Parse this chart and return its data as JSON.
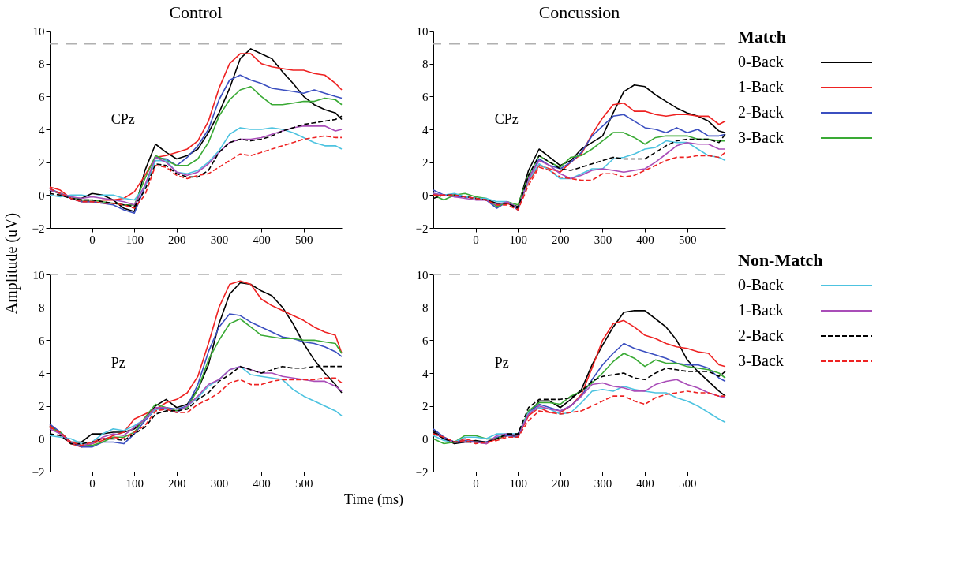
{
  "chart_data": [
    {
      "type": "line",
      "title": "Control",
      "ylabel": "Amplitude (uV)",
      "annotations": [
        "CPz"
      ],
      "xlim": [
        -100,
        590
      ],
      "ylim": [
        -2,
        10
      ],
      "xticks": [
        0,
        100,
        200,
        300,
        400,
        500
      ],
      "yticks": [
        -2,
        0,
        2,
        4,
        6,
        8,
        10
      ],
      "grid": false,
      "ref_lines": [
        {
          "axis": "y",
          "value": 9.2,
          "color": "#b0b0b0",
          "line_style": "dashed"
        }
      ],
      "x": [
        -100,
        -75,
        -50,
        -25,
        0,
        25,
        50,
        75,
        100,
        125,
        150,
        175,
        200,
        225,
        250,
        275,
        300,
        325,
        350,
        375,
        400,
        425,
        450,
        475,
        500,
        525,
        550,
        575,
        590
      ],
      "series": [
        {
          "color": "#000000",
          "line_style": "solid",
          "values": [
            0.3,
            0.1,
            -0.2,
            -0.2,
            0.1,
            0,
            -0.3,
            -0.8,
            -1.0,
            1.5,
            3.1,
            2.6,
            2.2,
            2.4,
            2.8,
            3.8,
            5.0,
            6.5,
            8.3,
            8.9,
            8.6,
            8.3,
            7.5,
            6.8,
            6.0,
            5.5,
            5.2,
            5.0,
            4.6
          ]
        },
        {
          "color": "#ee2222",
          "line_style": "solid",
          "values": [
            0.5,
            0.3,
            -0.2,
            -0.4,
            -0.4,
            -0.3,
            -0.3,
            -0.2,
            0.2,
            1.2,
            2.3,
            2.4,
            2.6,
            2.8,
            3.3,
            4.5,
            6.5,
            8.0,
            8.6,
            8.6,
            8.0,
            7.8,
            7.7,
            7.6,
            7.6,
            7.4,
            7.3,
            6.8,
            6.4
          ]
        },
        {
          "color": "#3b4fc0",
          "line_style": "solid",
          "values": [
            0.4,
            0.1,
            -0.2,
            -0.4,
            -0.4,
            -0.5,
            -0.6,
            -0.9,
            -1.1,
            0.5,
            2.3,
            2.2,
            1.8,
            2.3,
            3.0,
            4.0,
            5.8,
            7.0,
            7.3,
            7.0,
            6.8,
            6.5,
            6.4,
            6.3,
            6.2,
            6.4,
            6.2,
            6.0,
            5.9
          ]
        },
        {
          "color": "#3aaa35",
          "line_style": "solid",
          "values": [
            0.3,
            0.1,
            -0.1,
            -0.3,
            -0.3,
            -0.4,
            -0.5,
            -0.6,
            -0.6,
            1.0,
            2.4,
            2.1,
            1.8,
            1.8,
            2.2,
            3.2,
            4.8,
            5.8,
            6.4,
            6.6,
            6.0,
            5.5,
            5.5,
            5.6,
            5.7,
            5.7,
            5.9,
            5.8,
            5.5
          ]
        },
        {
          "color": "#4dc3e0",
          "line_style": "solid",
          "values": [
            0,
            -0.1,
            0,
            0,
            -0.1,
            0,
            0,
            -0.2,
            -0.3,
            0.5,
            2.1,
            2.1,
            1.4,
            1.3,
            1.5,
            2.0,
            2.7,
            3.7,
            4.1,
            4.0,
            4.0,
            4.1,
            4.0,
            3.8,
            3.5,
            3.2,
            3.0,
            3.0,
            2.8
          ]
        },
        {
          "color": "#a94db8",
          "line_style": "solid",
          "values": [
            0.3,
            0.1,
            -0.1,
            -0.2,
            -0.1,
            -0.2,
            -0.3,
            -0.4,
            -0.6,
            0.6,
            2.3,
            2.0,
            1.4,
            1.2,
            1.4,
            1.9,
            2.6,
            3.2,
            3.4,
            3.4,
            3.5,
            3.7,
            3.9,
            4.1,
            4.2,
            4.2,
            4.2,
            3.9,
            4.0
          ]
        },
        {
          "color": "#000000",
          "line_style": "dashed",
          "values": [
            0.1,
            0,
            -0.2,
            -0.3,
            -0.3,
            -0.4,
            -0.5,
            -0.6,
            -0.7,
            0.3,
            1.9,
            1.8,
            1.3,
            1.1,
            1.1,
            1.5,
            2.6,
            3.2,
            3.4,
            3.3,
            3.4,
            3.6,
            3.9,
            4.1,
            4.3,
            4.4,
            4.5,
            4.6,
            4.8
          ]
        },
        {
          "color": "#ee2222",
          "line_style": "dashed",
          "values": [
            0.4,
            0.1,
            -0.2,
            -0.4,
            -0.4,
            -0.5,
            -0.5,
            -0.6,
            -0.8,
            0,
            1.8,
            1.7,
            1.2,
            1.0,
            1.2,
            1.3,
            1.7,
            2.1,
            2.5,
            2.4,
            2.6,
            2.8,
            3.0,
            3.2,
            3.4,
            3.5,
            3.6,
            3.5,
            3.5
          ]
        }
      ]
    },
    {
      "type": "line",
      "title": "Concussion",
      "annotations": [
        "CPz"
      ],
      "xlim": [
        -100,
        590
      ],
      "ylim": [
        -2,
        10
      ],
      "xticks": [
        0,
        100,
        200,
        300,
        400,
        500
      ],
      "yticks": [
        -2,
        0,
        2,
        4,
        6,
        8,
        10
      ],
      "grid": false,
      "legend": "right",
      "legend_title": "Match",
      "ref_lines": [
        {
          "axis": "y",
          "value": 9.2,
          "color": "#b0b0b0",
          "line_style": "dashed"
        }
      ],
      "x": [
        -100,
        -75,
        -50,
        -25,
        0,
        25,
        50,
        75,
        100,
        125,
        150,
        175,
        200,
        225,
        250,
        275,
        300,
        325,
        350,
        375,
        400,
        425,
        450,
        475,
        500,
        525,
        550,
        575,
        590
      ],
      "series": [
        {
          "name": "0-Back",
          "color": "#000000",
          "line_style": "solid",
          "values": [
            0,
            0,
            0,
            -0.1,
            -0.2,
            -0.3,
            -0.5,
            -0.5,
            -0.7,
            1.5,
            2.8,
            2.3,
            1.8,
            2.1,
            2.8,
            3.2,
            3.6,
            5.0,
            6.3,
            6.7,
            6.6,
            6.1,
            5.7,
            5.3,
            5.0,
            4.8,
            4.5,
            3.9,
            3.8
          ]
        },
        {
          "name": "1-Back",
          "color": "#ee2222",
          "line_style": "solid",
          "values": [
            0,
            0,
            0,
            -0.1,
            -0.2,
            -0.3,
            -0.6,
            -0.5,
            -0.8,
            0.8,
            1.8,
            1.6,
            1.4,
            2.0,
            2.5,
            3.7,
            4.7,
            5.5,
            5.6,
            5.1,
            5.1,
            4.9,
            4.8,
            4.9,
            4.9,
            4.8,
            4.8,
            4.3,
            4.5
          ]
        },
        {
          "name": "2-Back",
          "color": "#3b4fc0",
          "line_style": "solid",
          "values": [
            0.3,
            0,
            -0.1,
            -0.1,
            -0.2,
            -0.3,
            -0.8,
            -0.4,
            -0.9,
            1.0,
            2.2,
            1.8,
            1.6,
            2.0,
            2.6,
            3.6,
            4.2,
            4.8,
            4.9,
            4.5,
            4.1,
            4.0,
            3.8,
            4.1,
            3.8,
            4.0,
            3.6,
            3.6,
            3.7
          ]
        },
        {
          "name": "3-Back",
          "color": "#3aaa35",
          "line_style": "solid",
          "values": [
            0,
            -0.3,
            0,
            0.1,
            -0.1,
            -0.2,
            -0.7,
            -0.4,
            -0.6,
            1.2,
            2.4,
            2.0,
            1.7,
            2.3,
            2.4,
            2.8,
            3.3,
            3.8,
            3.8,
            3.5,
            3.1,
            3.5,
            3.6,
            3.6,
            3.6,
            3.4,
            3.4,
            3.3,
            3.3
          ]
        },
        {
          "color": "#4dc3e0",
          "line_style": "solid",
          "values": [
            0.1,
            0,
            0.1,
            -0.1,
            -0.2,
            -0.2,
            -0.4,
            -0.4,
            -0.8,
            0.9,
            1.9,
            1.5,
            1.0,
            1.0,
            1.3,
            1.6,
            1.6,
            2.2,
            2.3,
            2.5,
            2.8,
            2.9,
            3.3,
            3.2,
            3.2,
            2.8,
            2.4,
            2.3,
            2.1
          ]
        },
        {
          "color": "#a94db8",
          "line_style": "solid",
          "values": [
            0.1,
            0,
            -0.1,
            -0.2,
            -0.3,
            -0.3,
            -0.6,
            -0.4,
            -0.8,
            1.0,
            2.1,
            1.8,
            1.3,
            1.0,
            1.2,
            1.5,
            1.6,
            1.5,
            1.4,
            1.5,
            1.6,
            2.0,
            2.5,
            3.0,
            3.2,
            3.1,
            3.1,
            2.8,
            2.8
          ]
        },
        {
          "color": "#000000",
          "line_style": "dashed",
          "values": [
            -0.2,
            0,
            0,
            -0.1,
            -0.2,
            -0.3,
            -0.5,
            -0.5,
            -0.8,
            1.2,
            2.4,
            2.0,
            1.6,
            1.5,
            1.7,
            1.9,
            2.1,
            2.3,
            2.2,
            2.2,
            2.2,
            2.6,
            3.0,
            3.3,
            3.4,
            3.4,
            3.4,
            3.2,
            3.7
          ]
        },
        {
          "color": "#ee2222",
          "line_style": "dashed",
          "values": [
            0,
            0,
            0,
            -0.1,
            -0.2,
            -0.3,
            -0.6,
            -0.6,
            -0.9,
            0.6,
            1.7,
            1.5,
            1.1,
            1.0,
            0.9,
            0.9,
            1.3,
            1.3,
            1.1,
            1.2,
            1.5,
            1.8,
            2.1,
            2.3,
            2.3,
            2.4,
            2.4,
            2.3,
            2.6
          ]
        }
      ]
    },
    {
      "type": "line",
      "xlabel": "Time (ms)",
      "annotations": [
        "Pz"
      ],
      "xlim": [
        -100,
        590
      ],
      "ylim": [
        -2,
        10
      ],
      "xticks": [
        0,
        100,
        200,
        300,
        400,
        500
      ],
      "yticks": [
        -2,
        0,
        2,
        4,
        6,
        8,
        10
      ],
      "grid": false,
      "ref_lines": [
        {
          "axis": "y",
          "value": 10,
          "color": "#b0b0b0",
          "line_style": "dashed"
        }
      ],
      "x": [
        -100,
        -75,
        -50,
        -25,
        0,
        25,
        50,
        75,
        100,
        125,
        150,
        175,
        200,
        225,
        250,
        275,
        300,
        325,
        350,
        375,
        400,
        425,
        450,
        475,
        500,
        525,
        550,
        575,
        590
      ],
      "series": [
        {
          "color": "#000000",
          "line_style": "solid",
          "values": [
            0.8,
            0.4,
            -0.2,
            -0.2,
            0.3,
            0.3,
            0.4,
            0.4,
            0.6,
            1.2,
            2.0,
            2.4,
            1.9,
            2.1,
            3.0,
            4.5,
            7.0,
            8.8,
            9.5,
            9.4,
            9.0,
            8.7,
            8.0,
            7.0,
            5.8,
            4.8,
            4.0,
            3.3,
            2.8
          ]
        },
        {
          "color": "#ee2222",
          "line_style": "solid",
          "values": [
            0.8,
            0.3,
            -0.3,
            -0.5,
            -0.3,
            -0.1,
            0.2,
            0.4,
            1.2,
            1.5,
            1.8,
            2.2,
            2.4,
            2.8,
            3.8,
            5.8,
            8.0,
            9.4,
            9.6,
            9.4,
            8.5,
            8.1,
            7.8,
            7.5,
            7.2,
            6.8,
            6.5,
            6.3,
            5.2
          ]
        },
        {
          "color": "#3b4fc0",
          "line_style": "solid",
          "values": [
            0.9,
            0.4,
            -0.2,
            -0.5,
            -0.5,
            -0.2,
            -0.2,
            -0.3,
            0.3,
            1.1,
            1.8,
            1.9,
            1.8,
            2.0,
            3.3,
            5.3,
            6.8,
            7.6,
            7.5,
            7.1,
            6.8,
            6.5,
            6.2,
            6.1,
            5.9,
            5.8,
            5.6,
            5.3,
            5.0
          ]
        },
        {
          "color": "#3aaa35",
          "line_style": "solid",
          "values": [
            0.7,
            0.4,
            -0.2,
            -0.4,
            -0.4,
            -0.2,
            0.1,
            0.1,
            0.4,
            1.3,
            2.1,
            1.9,
            1.7,
            1.9,
            3.0,
            4.8,
            6.0,
            7.0,
            7.3,
            6.8,
            6.3,
            6.2,
            6.1,
            6.1,
            6.0,
            6.0,
            5.9,
            5.8,
            5.2
          ]
        },
        {
          "color": "#4dc3e0",
          "line_style": "solid",
          "values": [
            0.2,
            0.1,
            0,
            -0.3,
            -0.2,
            0.3,
            0.6,
            0.5,
            0.8,
            1.2,
            1.8,
            1.8,
            1.6,
            2.0,
            2.5,
            3.2,
            3.6,
            4.2,
            4.4,
            3.9,
            3.8,
            3.7,
            3.6,
            3.0,
            2.6,
            2.3,
            2.0,
            1.7,
            1.4
          ]
        },
        {
          "color": "#a94db8",
          "line_style": "solid",
          "values": [
            0.6,
            0.3,
            -0.2,
            -0.4,
            -0.3,
            0.1,
            0.3,
            0.2,
            0.7,
            1.2,
            1.9,
            1.9,
            1.6,
            2.0,
            2.6,
            3.3,
            3.6,
            4.2,
            4.4,
            4.2,
            4.0,
            4.0,
            3.8,
            3.7,
            3.6,
            3.5,
            3.5,
            3.2,
            2.9
          ]
        },
        {
          "color": "#000000",
          "line_style": "dashed",
          "values": [
            0.3,
            0.2,
            -0.3,
            -0.3,
            -0.2,
            0,
            0,
            -0.1,
            0.3,
            0.7,
            1.5,
            1.7,
            1.7,
            1.8,
            2.4,
            2.8,
            3.5,
            3.9,
            4.4,
            4.2,
            4.0,
            4.2,
            4.4,
            4.3,
            4.3,
            4.4,
            4.4,
            4.4,
            4.4
          ]
        },
        {
          "color": "#ee2222",
          "line_style": "dashed",
          "values": [
            0.7,
            0.4,
            -0.2,
            -0.4,
            -0.2,
            0,
            0.1,
            0,
            0.4,
            0.8,
            1.7,
            1.8,
            1.6,
            1.6,
            2.1,
            2.4,
            2.8,
            3.4,
            3.6,
            3.3,
            3.3,
            3.5,
            3.6,
            3.6,
            3.6,
            3.6,
            3.7,
            3.7,
            3.4
          ]
        }
      ]
    },
    {
      "type": "line",
      "annotations": [
        "Pz"
      ],
      "xlim": [
        -100,
        590
      ],
      "ylim": [
        -2,
        10
      ],
      "xticks": [
        0,
        100,
        200,
        300,
        400,
        500
      ],
      "yticks": [
        -2,
        0,
        2,
        4,
        6,
        8,
        10
      ],
      "grid": false,
      "legend": "right",
      "legend_title": "Non-Match",
      "ref_lines": [
        {
          "axis": "y",
          "value": 10,
          "color": "#b0b0b0",
          "line_style": "dashed"
        }
      ],
      "x": [
        -100,
        -75,
        -50,
        -25,
        0,
        25,
        50,
        75,
        100,
        125,
        150,
        175,
        200,
        225,
        250,
        275,
        300,
        325,
        350,
        375,
        400,
        425,
        450,
        475,
        500,
        525,
        550,
        575,
        590
      ],
      "series": [
        {
          "color": "#000000",
          "line_style": "solid",
          "values": [
            0.5,
            0,
            -0.3,
            -0.2,
            -0.1,
            -0.2,
            0,
            0.2,
            0.2,
            1.5,
            2.3,
            2.3,
            1.9,
            2.4,
            3.0,
            4.5,
            5.7,
            6.8,
            7.7,
            7.8,
            7.8,
            7.3,
            6.8,
            6.0,
            4.8,
            4.1,
            3.5,
            2.9,
            2.6
          ]
        },
        {
          "color": "#ee2222",
          "line_style": "solid",
          "values": [
            0.3,
            0.1,
            -0.2,
            0,
            -0.2,
            -0.3,
            0,
            0.2,
            0.1,
            1.4,
            1.9,
            1.6,
            1.6,
            2.0,
            2.7,
            4.3,
            6.0,
            7.0,
            7.2,
            6.8,
            6.3,
            6.1,
            5.8,
            5.6,
            5.5,
            5.3,
            5.2,
            4.5,
            4.4
          ]
        },
        {
          "color": "#3b4fc0",
          "line_style": "solid",
          "values": [
            0.6,
            0.1,
            -0.2,
            -0.1,
            -0.2,
            -0.2,
            0.1,
            0.2,
            0.1,
            1.6,
            2.1,
            1.9,
            1.7,
            2.0,
            2.6,
            3.6,
            4.5,
            5.2,
            5.8,
            5.5,
            5.3,
            5.1,
            4.9,
            4.6,
            4.5,
            4.5,
            4.3,
            3.7,
            3.5
          ]
        },
        {
          "color": "#3aaa35",
          "line_style": "solid",
          "values": [
            0,
            -0.3,
            -0.2,
            0.2,
            0.2,
            0,
            0,
            0.3,
            0.2,
            1.7,
            2.2,
            2.2,
            2.1,
            2.6,
            2.9,
            3.4,
            4.0,
            4.7,
            5.2,
            4.9,
            4.4,
            4.8,
            4.6,
            4.6,
            4.4,
            4.3,
            4.2,
            4.0,
            3.7
          ]
        },
        {
          "name": "0-Back",
          "color": "#4dc3e0",
          "line_style": "solid",
          "values": [
            0.2,
            -0.1,
            -0.2,
            0.1,
            0.1,
            0,
            0.3,
            0.3,
            0.3,
            1.6,
            1.9,
            1.8,
            1.5,
            1.6,
            2.2,
            2.9,
            3.0,
            2.9,
            3.2,
            3.0,
            2.9,
            2.8,
            2.8,
            2.5,
            2.3,
            2.0,
            1.6,
            1.2,
            1.0
          ]
        },
        {
          "name": "1-Back",
          "color": "#a94db8",
          "line_style": "solid",
          "values": [
            0.4,
            0,
            -0.2,
            -0.2,
            -0.2,
            -0.3,
            0.2,
            0.3,
            0.2,
            1.5,
            2.0,
            1.8,
            1.7,
            2.0,
            2.6,
            3.3,
            3.4,
            3.2,
            3.1,
            2.9,
            2.9,
            3.3,
            3.5,
            3.6,
            3.3,
            3.1,
            2.8,
            2.6,
            2.5
          ]
        },
        {
          "name": "2-Back",
          "color": "#000000",
          "line_style": "dashed",
          "values": [
            0.4,
            0,
            -0.2,
            -0.2,
            -0.2,
            -0.2,
            0,
            0.3,
            0.3,
            1.9,
            2.4,
            2.4,
            2.4,
            2.5,
            2.9,
            3.5,
            3.8,
            3.9,
            4.0,
            3.7,
            3.6,
            4.0,
            4.3,
            4.2,
            4.1,
            4.1,
            4.1,
            3.8,
            4.1
          ]
        },
        {
          "name": "3-Back",
          "color": "#ee2222",
          "line_style": "dashed",
          "values": [
            0.3,
            0.1,
            -0.2,
            -0.1,
            -0.3,
            -0.2,
            -0.1,
            0.1,
            0.1,
            1.1,
            1.7,
            1.6,
            1.5,
            1.6,
            1.7,
            2.0,
            2.3,
            2.6,
            2.6,
            2.3,
            2.1,
            2.5,
            2.7,
            2.8,
            2.9,
            2.8,
            2.8,
            2.6,
            2.6
          ]
        }
      ]
    }
  ]
}
